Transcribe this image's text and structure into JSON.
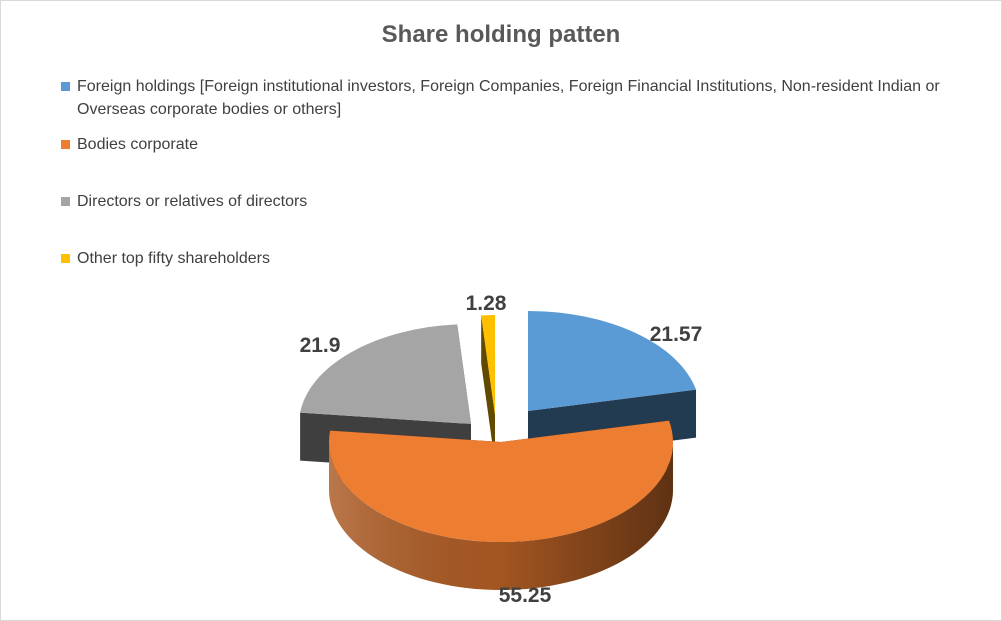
{
  "chart_data": {
    "type": "pie",
    "title": "Share holding patten",
    "legend_position": "top-left",
    "series": [
      {
        "name": "Share holding patten",
        "slices": [
          {
            "label": "Foreign holdings [Foreign institutional investors, Foreign Companies, Foreign Financial Institutions, Non-resident Indian or Overseas corporate bodies or others]",
            "value": 21.57,
            "value_text": "21.57",
            "color": "#5b9bd5"
          },
          {
            "label": "Bodies corporate",
            "value": 55.25,
            "value_text": "55.25",
            "color": "#ed7d31"
          },
          {
            "label": "Directors or relatives of directors",
            "value": 21.9,
            "value_text": "21.9",
            "color": "#a5a5a5"
          },
          {
            "label": "Other top fifty shareholders",
            "value": 1.28,
            "value_text": "1.28",
            "color": "#ffc000"
          }
        ]
      }
    ],
    "style": "3d-exploded"
  }
}
